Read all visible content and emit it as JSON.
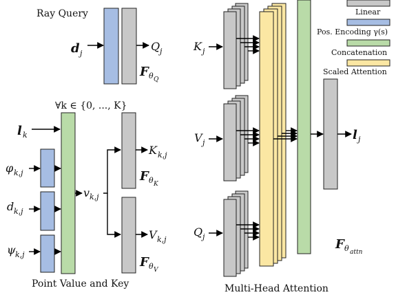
{
  "captions": {
    "ray_query": "Ray Query",
    "point_value_key": "Point Value and Key",
    "multi_head": "Multi-Head Attention",
    "forall": "∀k ∈ {0, ..., K}"
  },
  "legend": {
    "linear": "Linear",
    "pos_encoding": "Pos. Encoding γ(s)",
    "concatenation": "Concatenation",
    "scaled_attention": "Scaled Attention"
  },
  "vars": {
    "d_main": "d",
    "d_sub": "j",
    "Q_main": "Q",
    "Q_sub": "j",
    "l_main": "l",
    "l_sub": "k",
    "phi_main": "φ",
    "phi_sub": "k,j",
    "dk_main": "d",
    "dk_sub": "k,j",
    "psi_main": "ψ",
    "psi_sub": "k,j",
    "v_main": "v",
    "v_sub": "k,j",
    "Kkj_main": "K",
    "Kkj_sub": "k,j",
    "Vkj_main": "V",
    "Vkj_sub": "k,j",
    "Kj_main": "K",
    "Kj_sub": "j",
    "Vj_main": "V",
    "Vj_sub": "j",
    "Qj_main": "Q",
    "Qj_sub": "j",
    "lj_main": "l",
    "lj_sub": "j"
  },
  "functions": {
    "F": "F",
    "theta": "θ",
    "FQ_sub": "Q",
    "FK_sub": "K",
    "FV_sub": "V",
    "Fattn_sub": "attn"
  },
  "colors": {
    "linear": "#c8c8c8",
    "pos_encoding": "#a6bde3",
    "concatenation": "#b9dba8",
    "scaled_attention": "#fbe7a3"
  }
}
